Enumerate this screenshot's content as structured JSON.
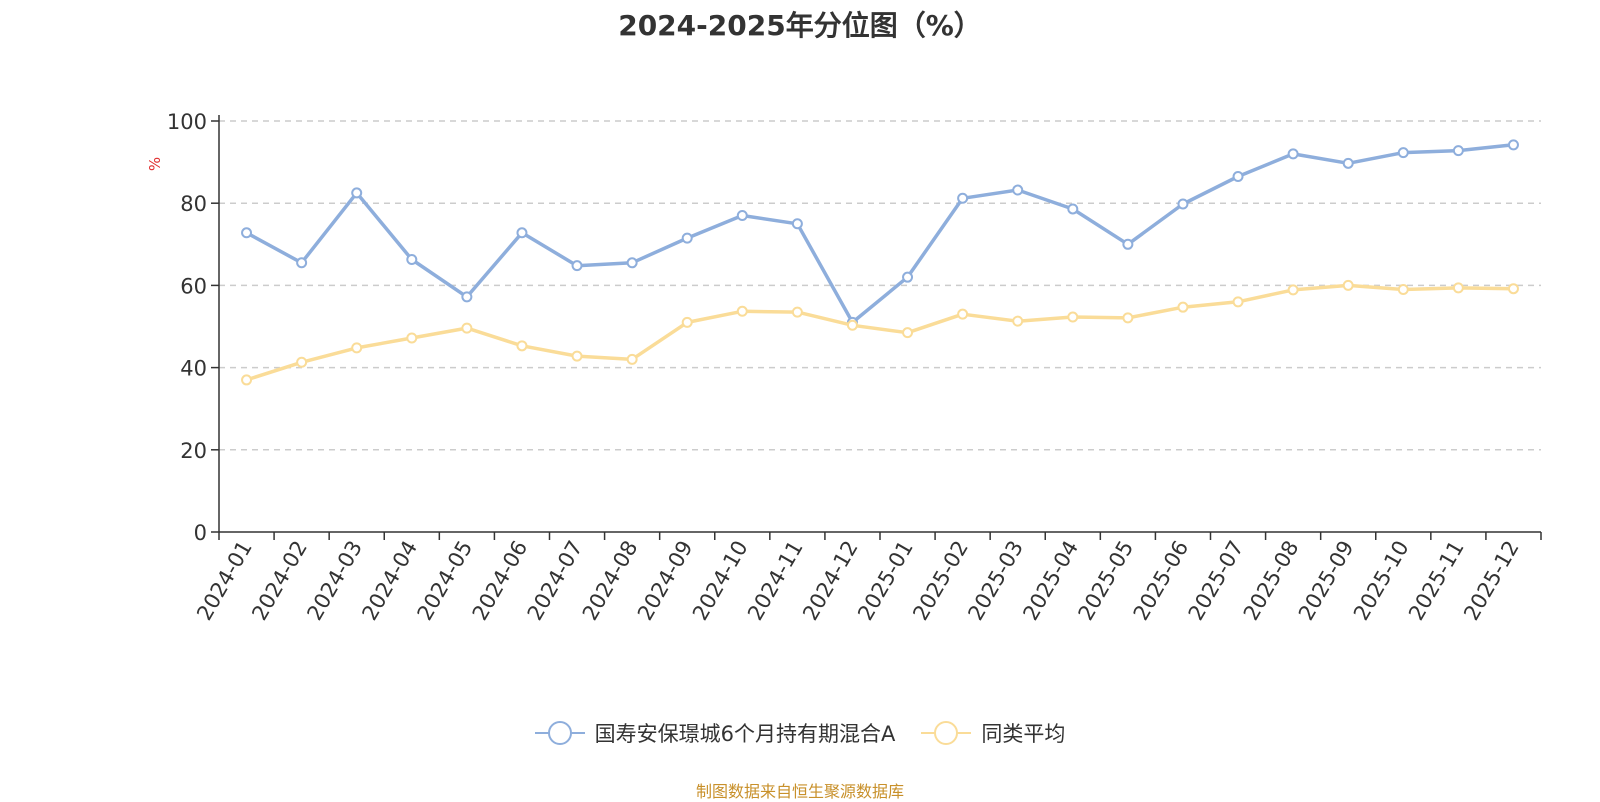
{
  "chart_data": {
    "type": "line",
    "title": "2024-2025年分位图（%）",
    "ylabel": "%",
    "xlabel": "",
    "ylim": [
      0,
      100
    ],
    "yticks": [
      0,
      20,
      40,
      60,
      80,
      100
    ],
    "grid": true,
    "legend_position": "bottom",
    "categories": [
      "2024-01",
      "2024-02",
      "2024-03",
      "2024-04",
      "2024-05",
      "2024-06",
      "2024-07",
      "2024-08",
      "2024-09",
      "2024-10",
      "2024-11",
      "2024-12",
      "2025-01",
      "2025-02",
      "2025-03",
      "2025-04",
      "2025-05",
      "2025-06",
      "2025-07",
      "2025-08",
      "2025-09",
      "2025-10",
      "2025-11",
      "2025-12"
    ],
    "series": [
      {
        "name": "国寿安保璟城6个月持有期混合A",
        "color": "#8eaedc",
        "values": [
          72.8,
          65.5,
          82.5,
          66.3,
          57.2,
          72.8,
          64.8,
          65.5,
          71.5,
          77.0,
          75.0,
          51.0,
          62.0,
          81.2,
          83.2,
          78.6,
          70.0,
          79.8,
          86.5,
          92.0,
          89.7,
          92.3,
          92.8,
          94.2
        ]
      },
      {
        "name": "同类平均",
        "color": "#fadc98",
        "values": [
          37.0,
          41.3,
          44.8,
          47.2,
          49.6,
          45.3,
          42.8,
          42.0,
          51.0,
          53.7,
          53.5,
          50.3,
          48.5,
          53.0,
          51.3,
          52.3,
          52.1,
          54.7,
          56.0,
          58.9,
          60.0,
          59.0,
          59.4,
          59.2
        ]
      }
    ]
  },
  "source_note": "制图数据来自恒生聚源数据库"
}
